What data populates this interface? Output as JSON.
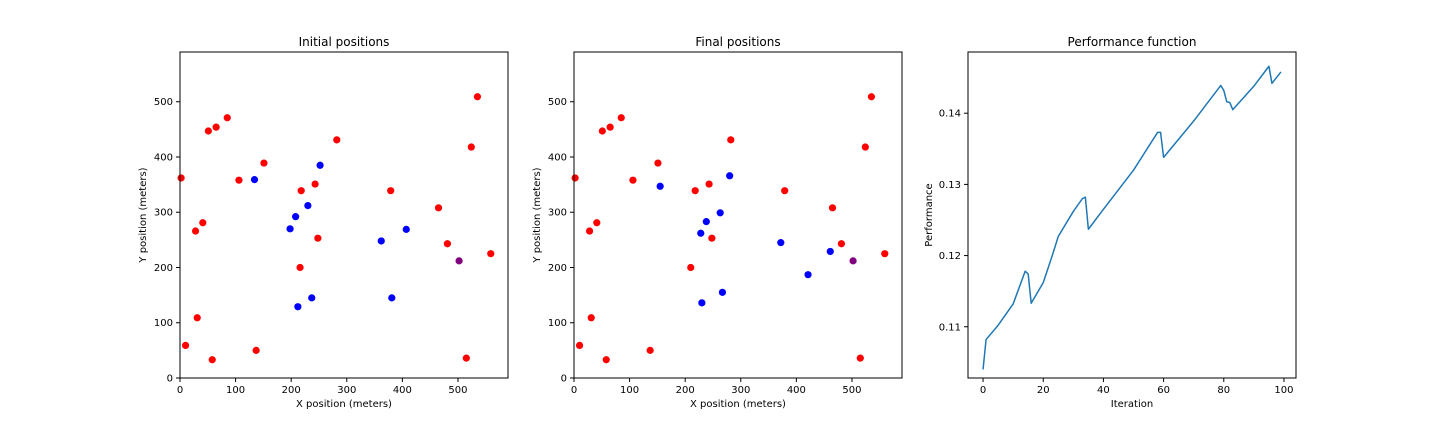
{
  "chart_data": [
    {
      "type": "scatter",
      "title": "Initial positions",
      "xlabel": "X position (meters)",
      "ylabel": "Y position (meters)",
      "xlim": [
        0,
        590
      ],
      "ylim": [
        0,
        590
      ],
      "xticks": [
        0,
        100,
        200,
        300,
        400,
        500
      ],
      "yticks": [
        0,
        100,
        200,
        300,
        400,
        500
      ],
      "grid": false,
      "series": [
        {
          "color": "#ff0000",
          "points": [
            [
              2,
              362
            ],
            [
              10,
              59
            ],
            [
              28,
              266
            ],
            [
              31,
              109
            ],
            [
              41,
              281
            ],
            [
              51,
              447
            ],
            [
              58,
              33
            ],
            [
              65,
              454
            ],
            [
              85,
              471
            ],
            [
              106,
              358
            ],
            [
              137,
              50
            ],
            [
              151,
              389
            ],
            [
              216,
              200
            ],
            [
              218,
              339
            ],
            [
              243,
              351
            ],
            [
              248,
              253
            ],
            [
              282,
              431
            ],
            [
              379,
              339
            ],
            [
              465,
              308
            ],
            [
              481,
              243
            ],
            [
              515,
              36
            ],
            [
              524,
              418
            ],
            [
              535,
              509
            ],
            [
              559,
              225
            ]
          ]
        },
        {
          "color": "#0000ff",
          "points": [
            [
              134,
              359
            ],
            [
              198,
              270
            ],
            [
              208,
              292
            ],
            [
              212,
              129
            ],
            [
              230,
              312
            ],
            [
              237,
              145
            ],
            [
              252,
              385
            ],
            [
              362,
              248
            ],
            [
              381,
              145
            ],
            [
              407,
              269
            ]
          ]
        },
        {
          "color": "#800080",
          "points": [
            [
              502,
              212
            ]
          ]
        }
      ]
    },
    {
      "type": "scatter",
      "title": "Final positions",
      "xlabel": "X position (meters)",
      "ylabel": "Y position (meters)",
      "xlim": [
        0,
        590
      ],
      "ylim": [
        0,
        590
      ],
      "xticks": [
        0,
        100,
        200,
        300,
        400,
        500
      ],
      "yticks": [
        0,
        100,
        200,
        300,
        400,
        500
      ],
      "grid": false,
      "series": [
        {
          "color": "#ff0000",
          "points": [
            [
              2,
              362
            ],
            [
              10,
              59
            ],
            [
              28,
              266
            ],
            [
              31,
              109
            ],
            [
              41,
              281
            ],
            [
              51,
              447
            ],
            [
              58,
              33
            ],
            [
              65,
              454
            ],
            [
              85,
              471
            ],
            [
              106,
              358
            ],
            [
              137,
              50
            ],
            [
              151,
              389
            ],
            [
              210,
              200
            ],
            [
              218,
              339
            ],
            [
              243,
              351
            ],
            [
              248,
              253
            ],
            [
              282,
              431
            ],
            [
              379,
              339
            ],
            [
              465,
              308
            ],
            [
              481,
              243
            ],
            [
              515,
              36
            ],
            [
              524,
              418
            ],
            [
              535,
              509
            ],
            [
              559,
              225
            ]
          ]
        },
        {
          "color": "#0000ff",
          "points": [
            [
              155,
              347
            ],
            [
              228,
              262
            ],
            [
              238,
              283
            ],
            [
              230,
              136
            ],
            [
              263,
              299
            ],
            [
              267,
              155
            ],
            [
              280,
              366
            ],
            [
              372,
              245
            ],
            [
              421,
              187
            ],
            [
              461,
              229
            ]
          ]
        },
        {
          "color": "#800080",
          "points": [
            [
              502,
              212
            ]
          ]
        }
      ]
    },
    {
      "type": "line",
      "title": "Performance function",
      "xlabel": "Iteration",
      "ylabel": "Performance",
      "xlim": [
        -5,
        104
      ],
      "ylim": [
        0.1028,
        0.1486
      ],
      "xticks": [
        0,
        20,
        40,
        60,
        80,
        100
      ],
      "yticks": [
        0.11,
        0.12,
        0.13,
        0.14
      ],
      "ytick_labels": [
        "0.11",
        "0.12",
        "0.13",
        "0.14"
      ],
      "grid": false,
      "series": [
        {
          "color": "#1f77b4",
          "points": [
            [
              0,
              0.104
            ],
            [
              1,
              0.1082
            ],
            [
              5,
              0.1102
            ],
            [
              10,
              0.1132
            ],
            [
              14,
              0.1178
            ],
            [
              15,
              0.1174
            ],
            [
              16,
              0.1133
            ],
            [
              20,
              0.1162
            ],
            [
              23,
              0.12
            ],
            [
              25,
              0.1227
            ],
            [
              30,
              0.1262
            ],
            [
              33,
              0.128
            ],
            [
              34,
              0.1282
            ],
            [
              35,
              0.1237
            ],
            [
              40,
              0.1265
            ],
            [
              50,
              0.132
            ],
            [
              58,
              0.1373
            ],
            [
              59,
              0.1373
            ],
            [
              60,
              0.1338
            ],
            [
              70,
              0.1389
            ],
            [
              79,
              0.1439
            ],
            [
              80,
              0.1432
            ],
            [
              81,
              0.1416
            ],
            [
              82,
              0.1415
            ],
            [
              83,
              0.1405
            ],
            [
              90,
              0.1438
            ],
            [
              95,
              0.1466
            ],
            [
              96,
              0.1442
            ],
            [
              99,
              0.1458
            ]
          ]
        }
      ]
    }
  ]
}
